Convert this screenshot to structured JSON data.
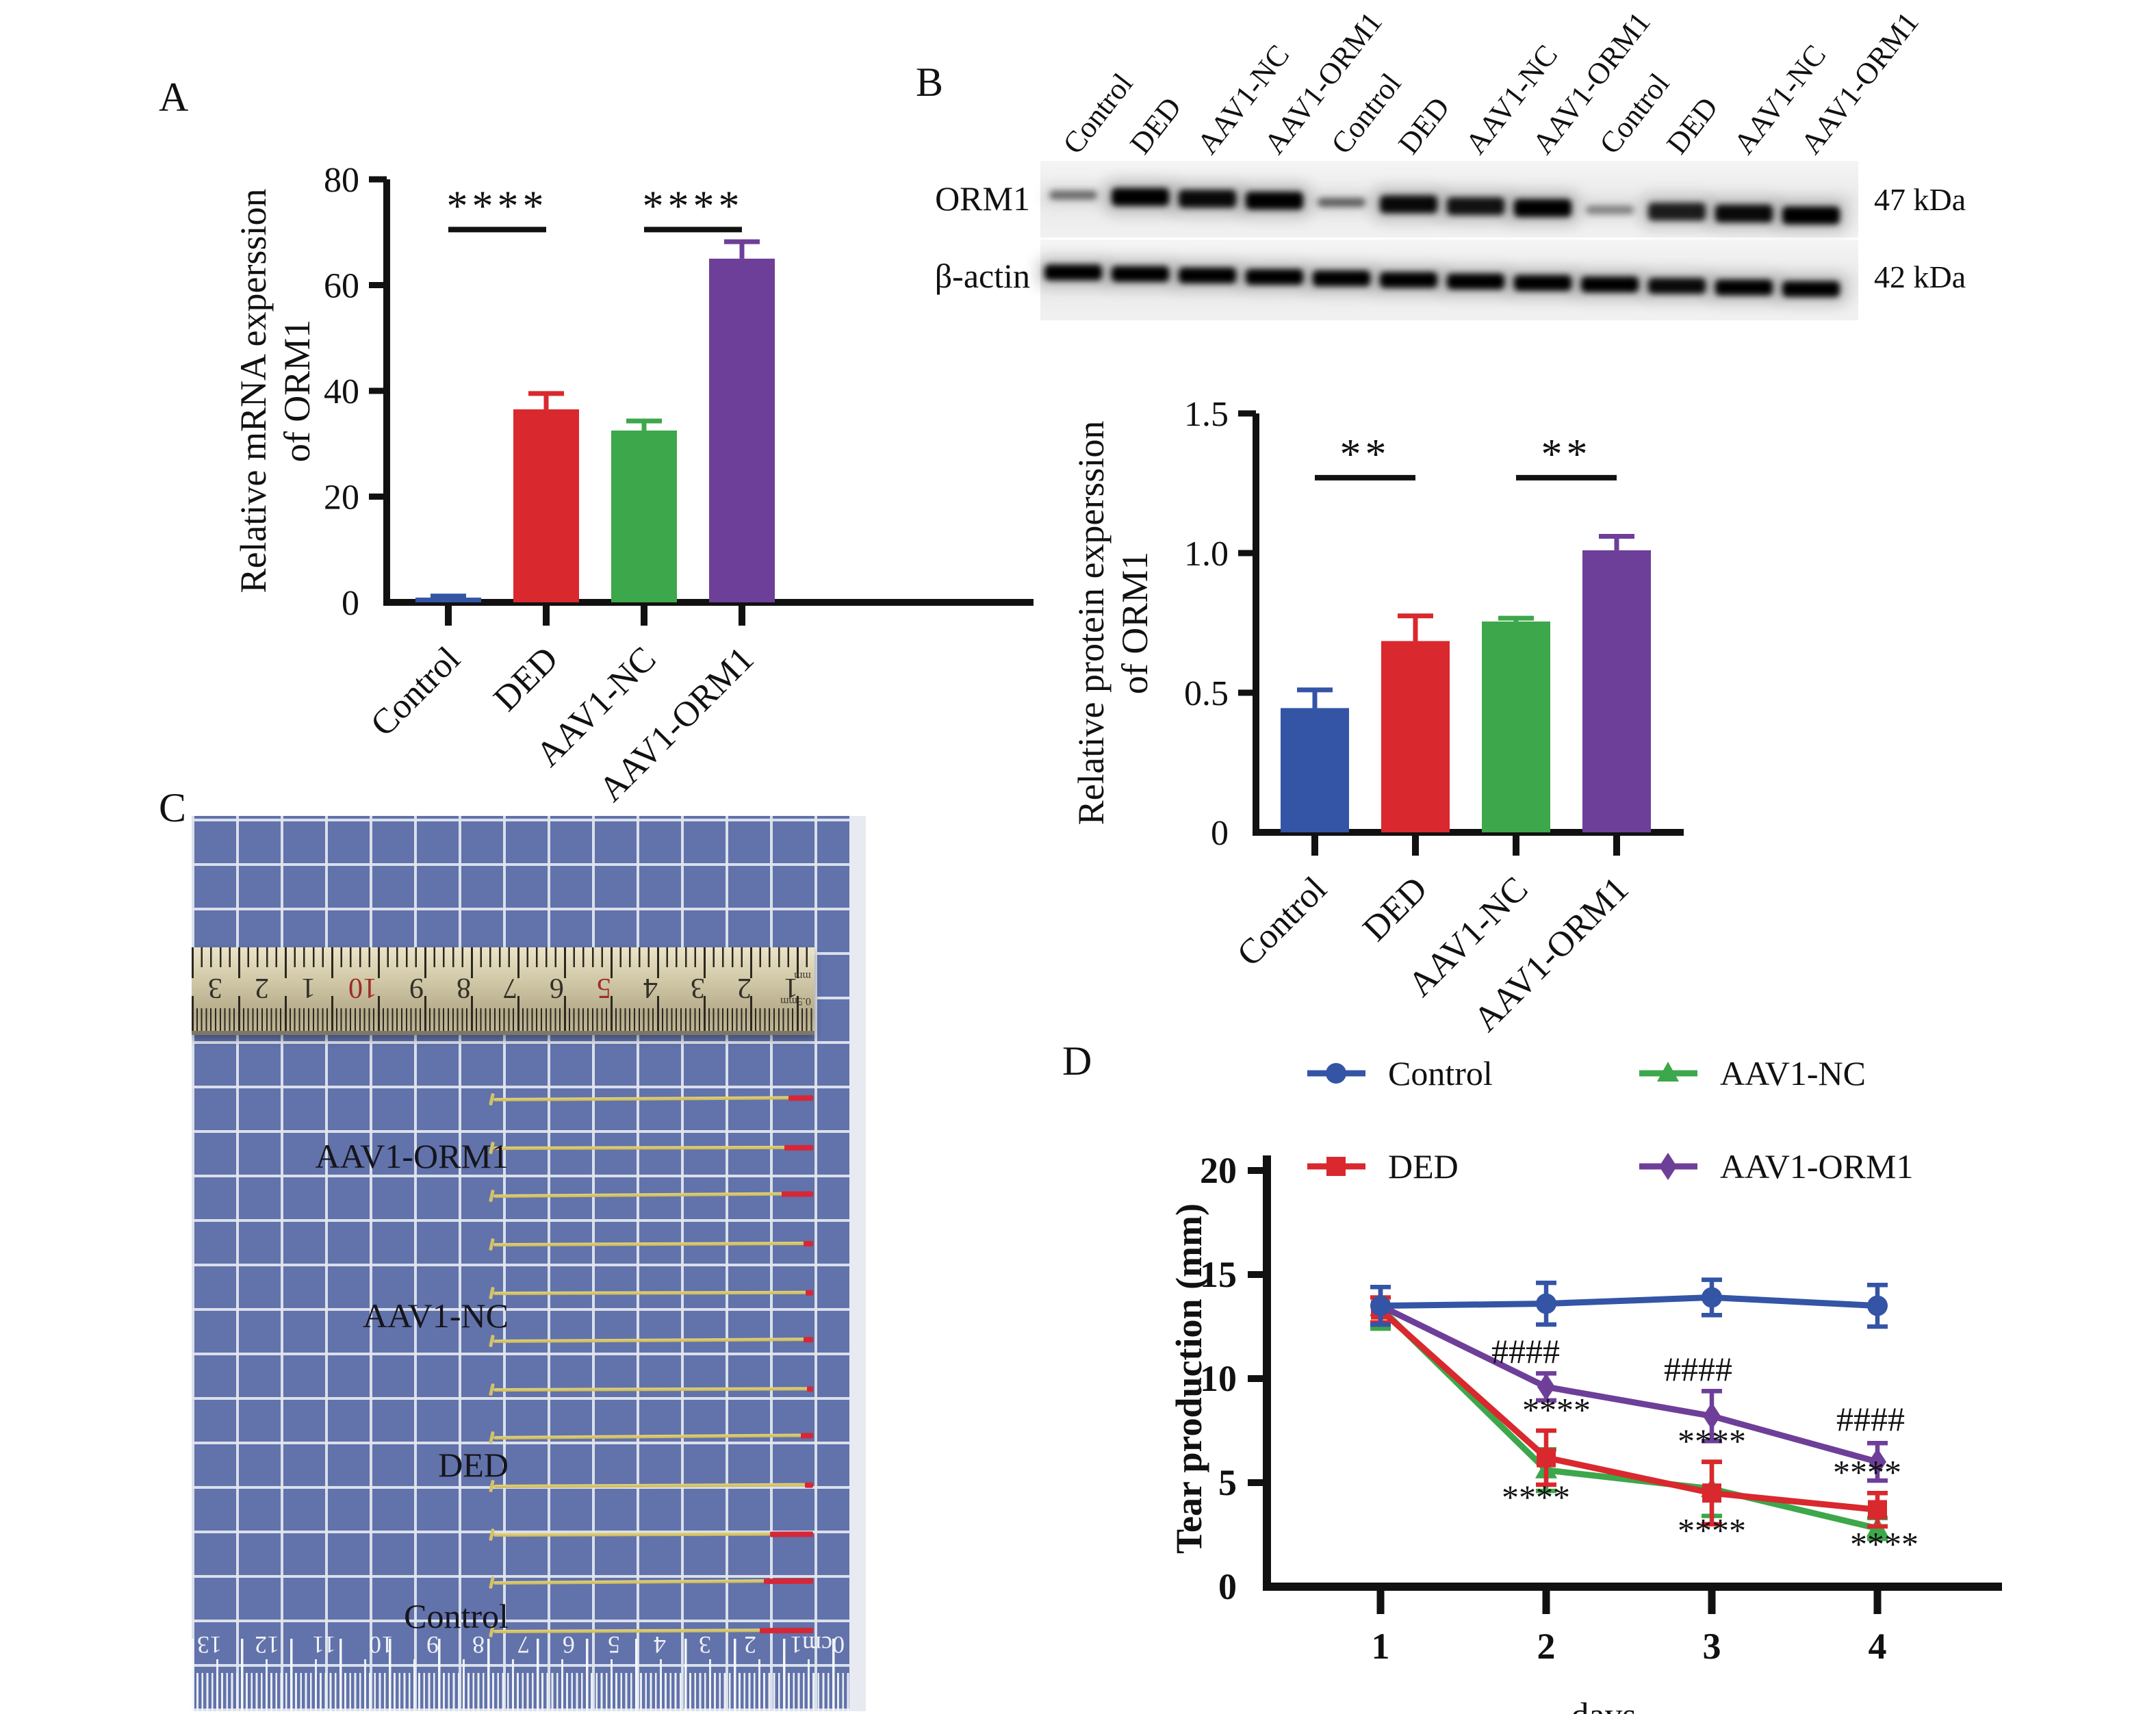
{
  "panels": {
    "a": "A",
    "b": "B",
    "c": "C",
    "d": "D"
  },
  "colors": {
    "axis": "#111111",
    "control_blue": "#3454a5",
    "ded_red": "#d9282e",
    "aav1nc_green": "#3da74b",
    "aav1orm1_purple": "#6e3f99",
    "photo_mat": "#6272aa",
    "thread_yellow": "#d7c667",
    "thread_tip_red": "#d62737"
  },
  "blot": {
    "lane_labels": [
      "Control",
      "DED",
      "AAV1-NC",
      "AAV1-ORM1",
      "Control",
      "DED",
      "AAV1-NC",
      "AAV1-ORM1",
      "Control",
      "DED",
      "AAV1-NC",
      "AAV1-ORM1"
    ],
    "rows": [
      {
        "name": "ORM1",
        "kda": "47 kDa",
        "band_intensities": [
          0.5,
          1,
          0.95,
          1,
          0.55,
          0.95,
          0.9,
          1,
          0.4,
          0.85,
          0.95,
          1
        ]
      },
      {
        "name": "β-actin",
        "kda": "42 kDa",
        "band_intensities": [
          1,
          1,
          1,
          1,
          1,
          1,
          1,
          1,
          1,
          0.95,
          1,
          1
        ]
      }
    ]
  },
  "chart_data": [
    {
      "id": "A",
      "type": "bar",
      "categories": [
        "Control",
        "DED",
        "AAV1-NC",
        "AAV1-ORM1"
      ],
      "values": [
        0.9,
        36.5,
        32.5,
        65
      ],
      "errors_plus": [
        0.3,
        3.0,
        1.8,
        3.2
      ],
      "ylabel": "Relative mRNA experssion of ORM1",
      "ylabel_lines": [
        "Relative mRNA experssion",
        "of ORM1"
      ],
      "ylim": [
        0,
        80
      ],
      "yticks": [
        0,
        20,
        40,
        60,
        80
      ],
      "ytick_labels": [
        "0",
        "20",
        "40",
        "60",
        "80"
      ],
      "significance": [
        {
          "from": 0,
          "to": 1,
          "label": "****",
          "y": 70.5
        },
        {
          "from": 2,
          "to": 3,
          "label": "****",
          "y": 70.5
        }
      ]
    },
    {
      "id": "B",
      "type": "bar",
      "categories": [
        "Control",
        "DED",
        "AAV1-NC",
        "AAV1-ORM1"
      ],
      "values": [
        0.445,
        0.685,
        0.755,
        1.01
      ],
      "errors_plus": [
        0.065,
        0.09,
        0.012,
        0.05
      ],
      "ylabel": "Relative protein experssion of ORM1",
      "ylabel_lines": [
        "Relative protein experssion",
        "of ORM1"
      ],
      "ylim": [
        0,
        1.5
      ],
      "yticks": [
        0,
        0.5,
        1.0,
        1.5
      ],
      "ytick_labels": [
        "0",
        "0.5",
        "1.0",
        "1.5"
      ],
      "significance": [
        {
          "from": 0,
          "to": 1,
          "label": "**",
          "y": 1.27
        },
        {
          "from": 2,
          "to": 3,
          "label": "**",
          "y": 1.27
        }
      ]
    },
    {
      "id": "D",
      "type": "line",
      "x": [
        1,
        2,
        3,
        4
      ],
      "xlabel": "days",
      "xtick_labels": [
        "1",
        "2",
        "3",
        "4"
      ],
      "ylabel": "Tear production (mm)",
      "ylim": [
        0,
        20
      ],
      "yticks": [
        0,
        5,
        10,
        15,
        20
      ],
      "ytick_labels": [
        "0",
        "5",
        "10",
        "15",
        "20"
      ],
      "series": [
        {
          "name": "Control",
          "marker": "circle",
          "values": [
            13.5,
            13.6,
            13.9,
            13.5
          ],
          "errors": [
            0.9,
            1.0,
            0.85,
            1.0
          ]
        },
        {
          "name": "DED",
          "marker": "square",
          "values": [
            13.3,
            6.2,
            4.5,
            3.7
          ],
          "errors": [
            0.6,
            1.3,
            1.5,
            0.8
          ]
        },
        {
          "name": "AAV1-NC",
          "marker": "triangle",
          "values": [
            13.4,
            5.6,
            4.7,
            2.8
          ],
          "errors": [
            1.0,
            1.0,
            1.3,
            0.5
          ]
        },
        {
          "name": "AAV1-ORM1",
          "marker": "diamond",
          "values": [
            13.5,
            9.6,
            8.2,
            6.0
          ],
          "errors": [
            0.9,
            0.65,
            1.2,
            0.9
          ]
        }
      ],
      "annotations": [
        {
          "text": "####",
          "day": 2,
          "y": 10.75,
          "dx": -30
        },
        {
          "text": "####",
          "day": 3,
          "y": 9.9,
          "dx": -20
        },
        {
          "text": "####",
          "day": 4,
          "y": 7.5,
          "dx": -10
        },
        {
          "text": "****",
          "day": 2,
          "y": 7.95,
          "dx": 15
        },
        {
          "text": "****",
          "day": 3,
          "y": 6.45,
          "dx": 0
        },
        {
          "text": "****",
          "day": 4,
          "y": 4.95,
          "dx": -15
        },
        {
          "text": "****",
          "day": 2,
          "y": 3.75,
          "dx": -15
        },
        {
          "text": "****",
          "day": 3,
          "y": 2.15,
          "dx": 0
        },
        {
          "text": "****",
          "day": 4,
          "y": 1.5,
          "dx": 10
        }
      ],
      "legend_order": [
        [
          0,
          2
        ],
        [
          1,
          3
        ]
      ]
    }
  ],
  "photo": {
    "group_labels": [
      {
        "text": "AAV1-ORM1",
        "y": 38.0
      },
      {
        "text": "AAV1-NC",
        "y": 55.8
      },
      {
        "text": "DED",
        "y": 72.5
      },
      {
        "text": "Control",
        "y": 89.4
      }
    ],
    "threads": [
      {
        "y": 31.5,
        "tip": 36
      },
      {
        "y": 36.9,
        "tip": 42
      },
      {
        "y": 42.3,
        "tip": 46
      },
      {
        "y": 47.7,
        "tip": 14
      },
      {
        "y": 53.1,
        "tip": 11
      },
      {
        "y": 58.5,
        "tip": 14
      },
      {
        "y": 63.9,
        "tip": 9
      },
      {
        "y": 69.3,
        "tip": 18
      },
      {
        "y": 74.7,
        "tip": 12
      },
      {
        "y": 80.1,
        "tip": 63
      },
      {
        "y": 85.5,
        "tip": 72
      },
      {
        "y": 90.9,
        "tip": 78
      }
    ],
    "ruler_top": {
      "numbers": [
        "3",
        "2",
        "1",
        "10",
        "9",
        "8",
        "7",
        "6",
        "5",
        "4",
        "3",
        "2",
        "1"
      ],
      "red_numbers": [
        "10",
        "5"
      ],
      "unit_top": "mm",
      "unit_bottom": "0.5mm"
    },
    "ruler_bottom": {
      "numbers": [
        "13",
        "12",
        "11",
        "10",
        "9",
        "8",
        "7",
        "6",
        "5",
        "4",
        "3",
        "2",
        "0cm1"
      ]
    }
  }
}
